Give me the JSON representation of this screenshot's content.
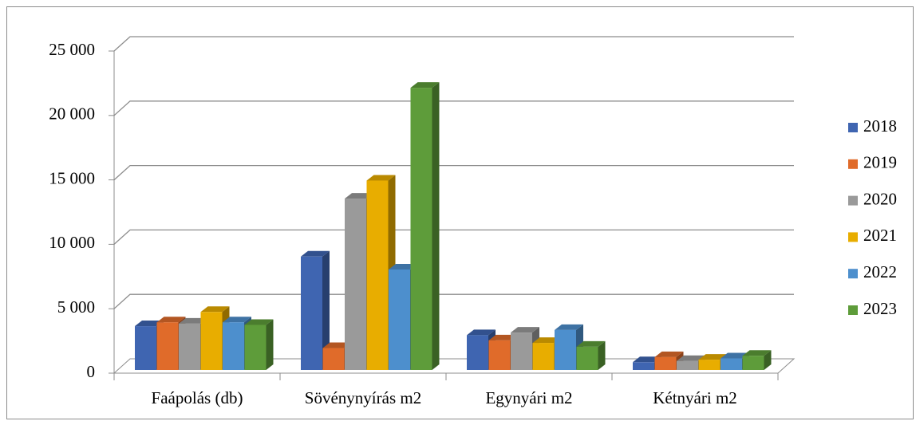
{
  "chart_data": {
    "type": "bar3d",
    "categories": [
      "Faápolás (db)",
      "Sövénynyírás m2",
      "Egynyári m2",
      "Kétnyári m2"
    ],
    "series": [
      {
        "name": "2018",
        "color": "#3f65b1",
        "values": [
          3400,
          8800,
          2700,
          600
        ]
      },
      {
        "name": "2019",
        "color": "#e06b2a",
        "values": [
          3700,
          1700,
          2300,
          1000
        ]
      },
      {
        "name": "2020",
        "color": "#9a9a9a",
        "values": [
          3600,
          13300,
          2900,
          700
        ]
      },
      {
        "name": "2021",
        "color": "#e8ad00",
        "values": [
          4500,
          14700,
          2100,
          800
        ]
      },
      {
        "name": "2022",
        "color": "#4d8fcd",
        "values": [
          3700,
          7800,
          3100,
          900
        ]
      },
      {
        "name": "2023",
        "color": "#5e9c3a",
        "values": [
          3500,
          21900,
          1800,
          1100
        ]
      }
    ],
    "ylim": [
      0,
      25000
    ],
    "yticks": [
      0,
      {
        "value": 5000,
        "label": "5 000"
      },
      {
        "value": 10000,
        "label": "10 000"
      },
      {
        "value": 15000,
        "label": "15 000"
      },
      {
        "value": 20000,
        "label": "20 000"
      },
      {
        "value": 25000,
        "label": "25 000"
      }
    ],
    "grid": true,
    "legend": "right"
  }
}
